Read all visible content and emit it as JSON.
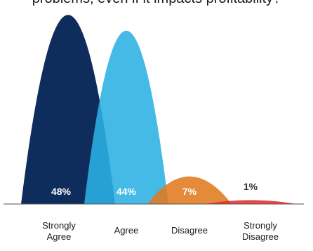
{
  "chart_data": {
    "type": "area",
    "title": "problems, even if it impacts profitability?",
    "categories": [
      "Strongly Agree",
      "Agree",
      "Disagree",
      "Strongly Disagree"
    ],
    "category_labels": [
      [
        "Strongly",
        "Agree"
      ],
      [
        "Agree"
      ],
      [
        "Disagree"
      ],
      [
        "Strongly",
        "Disagree"
      ]
    ],
    "values": [
      48,
      44,
      7,
      1
    ],
    "value_labels": [
      "48%",
      "44%",
      "7%",
      "1%"
    ],
    "ylim": [
      0,
      50
    ],
    "grid": false,
    "legend": "none",
    "colors": [
      "#0f2d5c",
      "#2bb0e4",
      "#e07a1f",
      "#e52d2d"
    ],
    "label_colors": [
      "#ffffff",
      "#ffffff",
      "#ffffff",
      "#333333"
    ]
  }
}
